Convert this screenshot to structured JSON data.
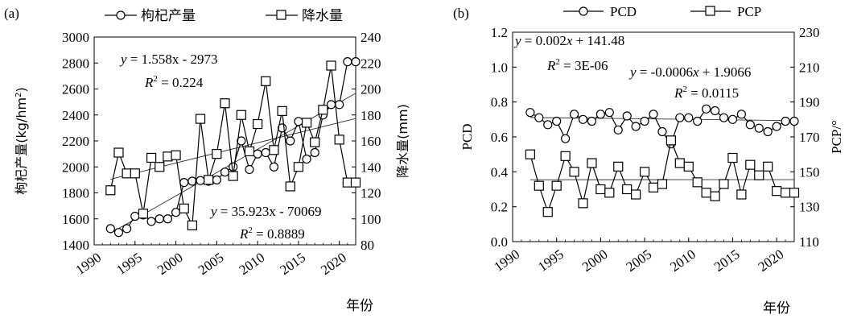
{
  "chart_data": [
    {
      "panel_label": "(a)",
      "type": "line",
      "xlabel": "年份",
      "ylabel_left": "枸杞产量(kg/hm²)",
      "ylabel_left_main": "枸杞产量(kg/hm",
      "ylabel_left_sup": "2",
      "ylabel_left_tail": ")",
      "ylabel_right": "降水量(mm)",
      "x_ticks": [
        1990,
        1995,
        2000,
        2005,
        2010,
        2015,
        2020
      ],
      "xlim": [
        1990,
        2022
      ],
      "y_left_ticks": [
        1400,
        1600,
        1800,
        2000,
        2200,
        2400,
        2600,
        2800,
        3000
      ],
      "y_left_lim": [
        1400,
        3000
      ],
      "y_right_ticks": [
        80,
        100,
        120,
        140,
        160,
        180,
        200,
        220,
        240
      ],
      "y_right_lim": [
        80,
        240
      ],
      "legend": [
        "枸杞产量",
        "降水量"
      ],
      "series": [
        {
          "name": "枸杞产量",
          "axis": "left",
          "marker": "circle",
          "x": [
            1992,
            1993,
            1994,
            1995,
            1996,
            1997,
            1998,
            1999,
            2000,
            2001,
            2002,
            2003,
            2004,
            2005,
            2006,
            2007,
            2008,
            2009,
            2010,
            2011,
            2012,
            2013,
            2014,
            2015,
            2016,
            2017,
            2018,
            2019,
            2020,
            2021,
            2022
          ],
          "values": [
            1525,
            1495,
            1525,
            1620,
            1630,
            1580,
            1600,
            1600,
            1650,
            1880,
            1890,
            1895,
            1890,
            1900,
            1960,
            2000,
            2200,
            1980,
            2100,
            2110,
            2000,
            2300,
            2200,
            2350,
            2060,
            2110,
            2400,
            2480,
            2480,
            2810,
            2810
          ]
        },
        {
          "name": "降水量",
          "axis": "right",
          "marker": "square",
          "x": [
            1992,
            1993,
            1994,
            1995,
            1996,
            1997,
            1998,
            1999,
            2000,
            2001,
            2002,
            2003,
            2004,
            2005,
            2006,
            2007,
            2008,
            2009,
            2010,
            2011,
            2012,
            2013,
            2014,
            2015,
            2016,
            2017,
            2018,
            2019,
            2020,
            2021,
            2022
          ],
          "values": [
            122,
            151,
            135,
            135,
            104,
            147,
            140,
            148,
            149,
            108,
            95,
            177,
            130,
            150,
            189,
            133,
            180,
            152,
            173,
            206,
            153,
            183,
            125,
            140,
            174,
            159,
            184,
            218,
            161,
            128,
            128
          ]
        }
      ],
      "trendlines": [
        {
          "series": "枸杞产量",
          "slope": 35.923,
          "intercept": -70069,
          "axis": "left",
          "x_range": [
            1992,
            2022
          ]
        },
        {
          "series": "降水量",
          "slope": 1.558,
          "intercept": -2973,
          "axis": "right",
          "x_range": [
            1992,
            2022
          ]
        }
      ],
      "annotations": {
        "precip_eq_prefix": "y",
        "precip_eq_body": " = 1.558x - 2973",
        "precip_r2": "R",
        "precip_r2_sup": "2",
        "precip_r2_val": " = 0.224",
        "yield_eq_prefix": "y",
        "yield_eq_body": " = 35.923x  - 70069",
        "yield_r2": "R",
        "yield_r2_sup": "2",
        "yield_r2_val": " = 0.8889"
      }
    },
    {
      "panel_label": "(b)",
      "type": "line",
      "xlabel": "年份",
      "ylabel_left": "PCD",
      "ylabel_right": "PCP/°",
      "x_ticks": [
        1990,
        1995,
        2000,
        2005,
        2010,
        2015,
        2020
      ],
      "xlim": [
        1990,
        2022
      ],
      "y_left_ticks": [
        "0.0",
        "0.2",
        "0.4",
        "0.6",
        "0.8",
        "1.0",
        "1.2"
      ],
      "y_left_lim": [
        0,
        1.2
      ],
      "y_right_ticks": [
        110,
        130,
        150,
        170,
        190,
        210,
        230
      ],
      "y_right_lim": [
        110,
        230
      ],
      "legend": [
        "PCD",
        "PCP"
      ],
      "series": [
        {
          "name": "PCD",
          "axis": "left",
          "marker": "circle",
          "x": [
            1992,
            1993,
            1994,
            1995,
            1996,
            1997,
            1998,
            1999,
            2000,
            2001,
            2002,
            2003,
            2004,
            2005,
            2006,
            2007,
            2008,
            2009,
            2010,
            2011,
            2012,
            2013,
            2014,
            2015,
            2016,
            2017,
            2018,
            2019,
            2020,
            2021,
            2022
          ],
          "values": [
            0.74,
            0.71,
            0.67,
            0.69,
            0.59,
            0.73,
            0.7,
            0.69,
            0.73,
            0.74,
            0.64,
            0.72,
            0.66,
            0.69,
            0.73,
            0.63,
            0.56,
            0.71,
            0.71,
            0.69,
            0.76,
            0.75,
            0.71,
            0.7,
            0.73,
            0.67,
            0.65,
            0.63,
            0.66,
            0.69,
            0.69
          ]
        },
        {
          "name": "PCP",
          "axis": "right",
          "marker": "square",
          "x": [
            1992,
            1993,
            1994,
            1995,
            1996,
            1997,
            1998,
            1999,
            2000,
            2001,
            2002,
            2003,
            2004,
            2005,
            2006,
            2007,
            2008,
            2009,
            2010,
            2011,
            2012,
            2013,
            2014,
            2015,
            2016,
            2017,
            2018,
            2019,
            2020,
            2021,
            2022
          ],
          "values": [
            160,
            142,
            127,
            142,
            159,
            150,
            132,
            155,
            140,
            138,
            153,
            140,
            137,
            150,
            141,
            143,
            168,
            155,
            153,
            144,
            138,
            136,
            143,
            158,
            137,
            154,
            148,
            153,
            139,
            138,
            138
          ]
        }
      ],
      "trendlines": [
        {
          "series": "PCD",
          "slope": -0.0006,
          "intercept": 1.9066,
          "axis": "left",
          "x_range": [
            1992,
            2022
          ]
        },
        {
          "series": "PCP",
          "slope": 0.002,
          "intercept": 141.48,
          "axis": "right",
          "x_range": [
            1992,
            2022
          ]
        }
      ],
      "annotations": {
        "pcp_eq_prefix": "y",
        "pcp_eq_mid": " = 0.002",
        "pcp_eq_x": "x",
        "pcp_eq_tail": " + 141.48",
        "pcp_r2": "R",
        "pcp_r2_sup": "2",
        "pcp_r2_val": " = 3E-06",
        "pcd_eq_prefix": "y",
        "pcd_eq_body": " = -0.0006",
        "pcd_eq_x": "x",
        "pcd_eq_tail": " + 1.9066",
        "pcd_r2": "R",
        "pcd_r2_sup": "2",
        "pcd_r2_val": " = 0.0115"
      }
    }
  ]
}
